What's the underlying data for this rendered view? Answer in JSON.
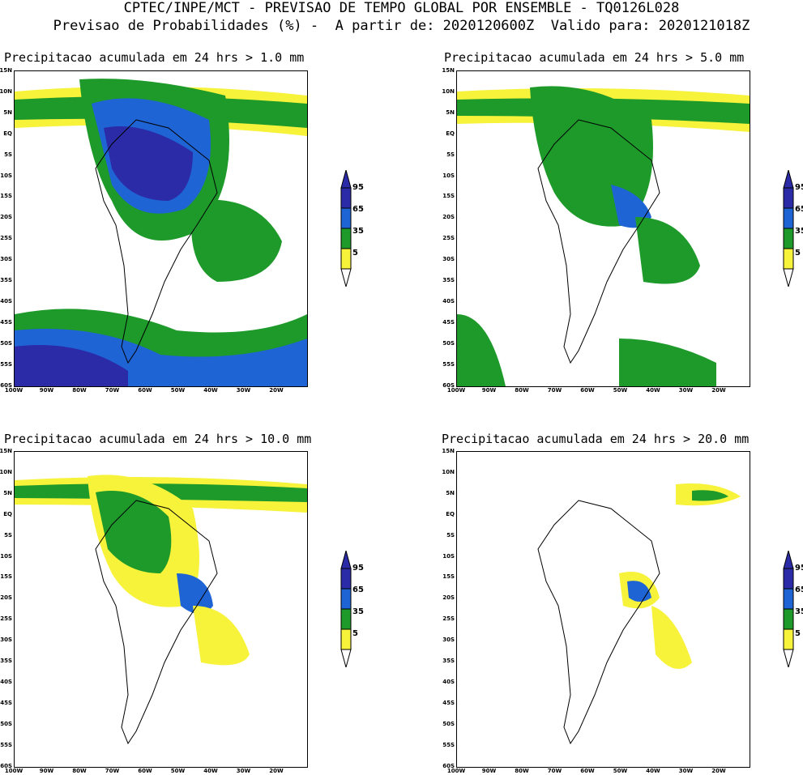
{
  "header": {
    "line1": "CPTEC/INPE/MCT - PREVISAO DE TEMPO GLOBAL POR ENSEMBLE - TQ0126L028",
    "line2": "Previsao de Probabilidades (%) -  A partir de: 2020120600Z  Valido para: 2020121018Z"
  },
  "panels": [
    {
      "title": "Precipitacao acumulada em 24 hrs > 1.0 mm"
    },
    {
      "title": "Precipitacao acumulada em 24 hrs > 5.0 mm"
    },
    {
      "title": "Precipitacao acumulada em 24 hrs > 10.0 mm"
    },
    {
      "title": "Precipitacao acumulada em 24 hrs > 20.0 mm"
    }
  ],
  "lat_labels": [
    "15N",
    "10N",
    "5N",
    "EQ",
    "5S",
    "10S",
    "15S",
    "20S",
    "25S",
    "30S",
    "35S",
    "40S",
    "45S",
    "50S",
    "55S",
    "60S"
  ],
  "lon_labels": [
    "100W",
    "90W",
    "80W",
    "70W",
    "60W",
    "50W",
    "40W",
    "30W",
    "20W"
  ],
  "colorbar": {
    "labels": [
      "95",
      "65",
      "35",
      "5"
    ],
    "colors": {
      "c95": "#2b2ba8",
      "c65": "#1f64d4",
      "c35": "#1e9a2a",
      "c5": "#f7f23a"
    }
  }
}
